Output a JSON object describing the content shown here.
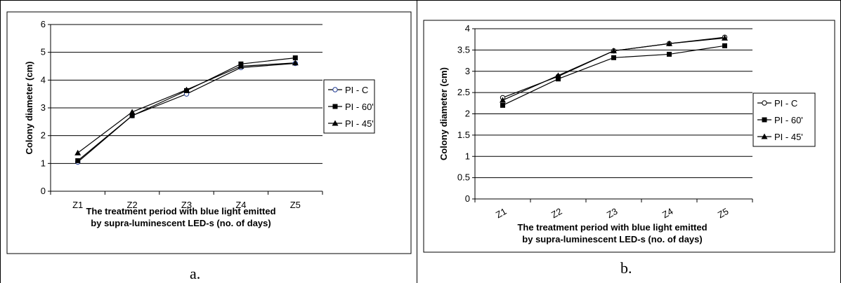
{
  "chart_data": [
    {
      "type": "line",
      "panel_label": "a.",
      "categories": [
        "Z1",
        "Z2",
        "Z3",
        "Z4",
        "Z5"
      ],
      "ylabel": "Colony diameter (cm)",
      "xlabel_lines": [
        "The treatment period with blue light emitted",
        "by supra-luminescent LED-s (no. of days)"
      ],
      "ylim": [
        0,
        6
      ],
      "yticks": [
        "0",
        "1",
        "2",
        "3",
        "4",
        "5",
        "6"
      ],
      "grid": true,
      "legend_position": "right",
      "series": [
        {
          "name": "PI - C",
          "marker": "circle",
          "values": [
            1.05,
            2.72,
            3.5,
            4.45,
            4.6
          ]
        },
        {
          "name": "PI - 60'",
          "marker": "square",
          "values": [
            1.1,
            2.72,
            3.62,
            4.58,
            4.8
          ]
        },
        {
          "name": "PI - 45'",
          "marker": "triangle",
          "values": [
            1.38,
            2.85,
            3.65,
            4.5,
            4.62
          ]
        }
      ]
    },
    {
      "type": "line",
      "panel_label": "b.",
      "categories": [
        "Z1",
        "Z2",
        "Z3",
        "Z4",
        "Z5"
      ],
      "ylabel": "Colony diameter (cm)",
      "xlabel_lines": [
        "The treatment period with blue light emitted",
        "by supra-luminescent LED-s (no. of days)"
      ],
      "ylim": [
        0,
        4
      ],
      "yticks": [
        "0",
        "0.5",
        "1",
        "1.5",
        "2",
        "2.5",
        "3",
        "3.5",
        "4"
      ],
      "grid": true,
      "legend_position": "right",
      "series": [
        {
          "name": "PI - C",
          "marker": "circle",
          "values": [
            2.38,
            2.88,
            3.48,
            3.65,
            3.8
          ]
        },
        {
          "name": "PI - 60'",
          "marker": "square",
          "values": [
            2.2,
            2.82,
            3.32,
            3.4,
            3.6
          ]
        },
        {
          "name": "PI - 45'",
          "marker": "triangle",
          "values": [
            2.32,
            2.9,
            3.48,
            3.65,
            3.78
          ]
        }
      ]
    }
  ]
}
